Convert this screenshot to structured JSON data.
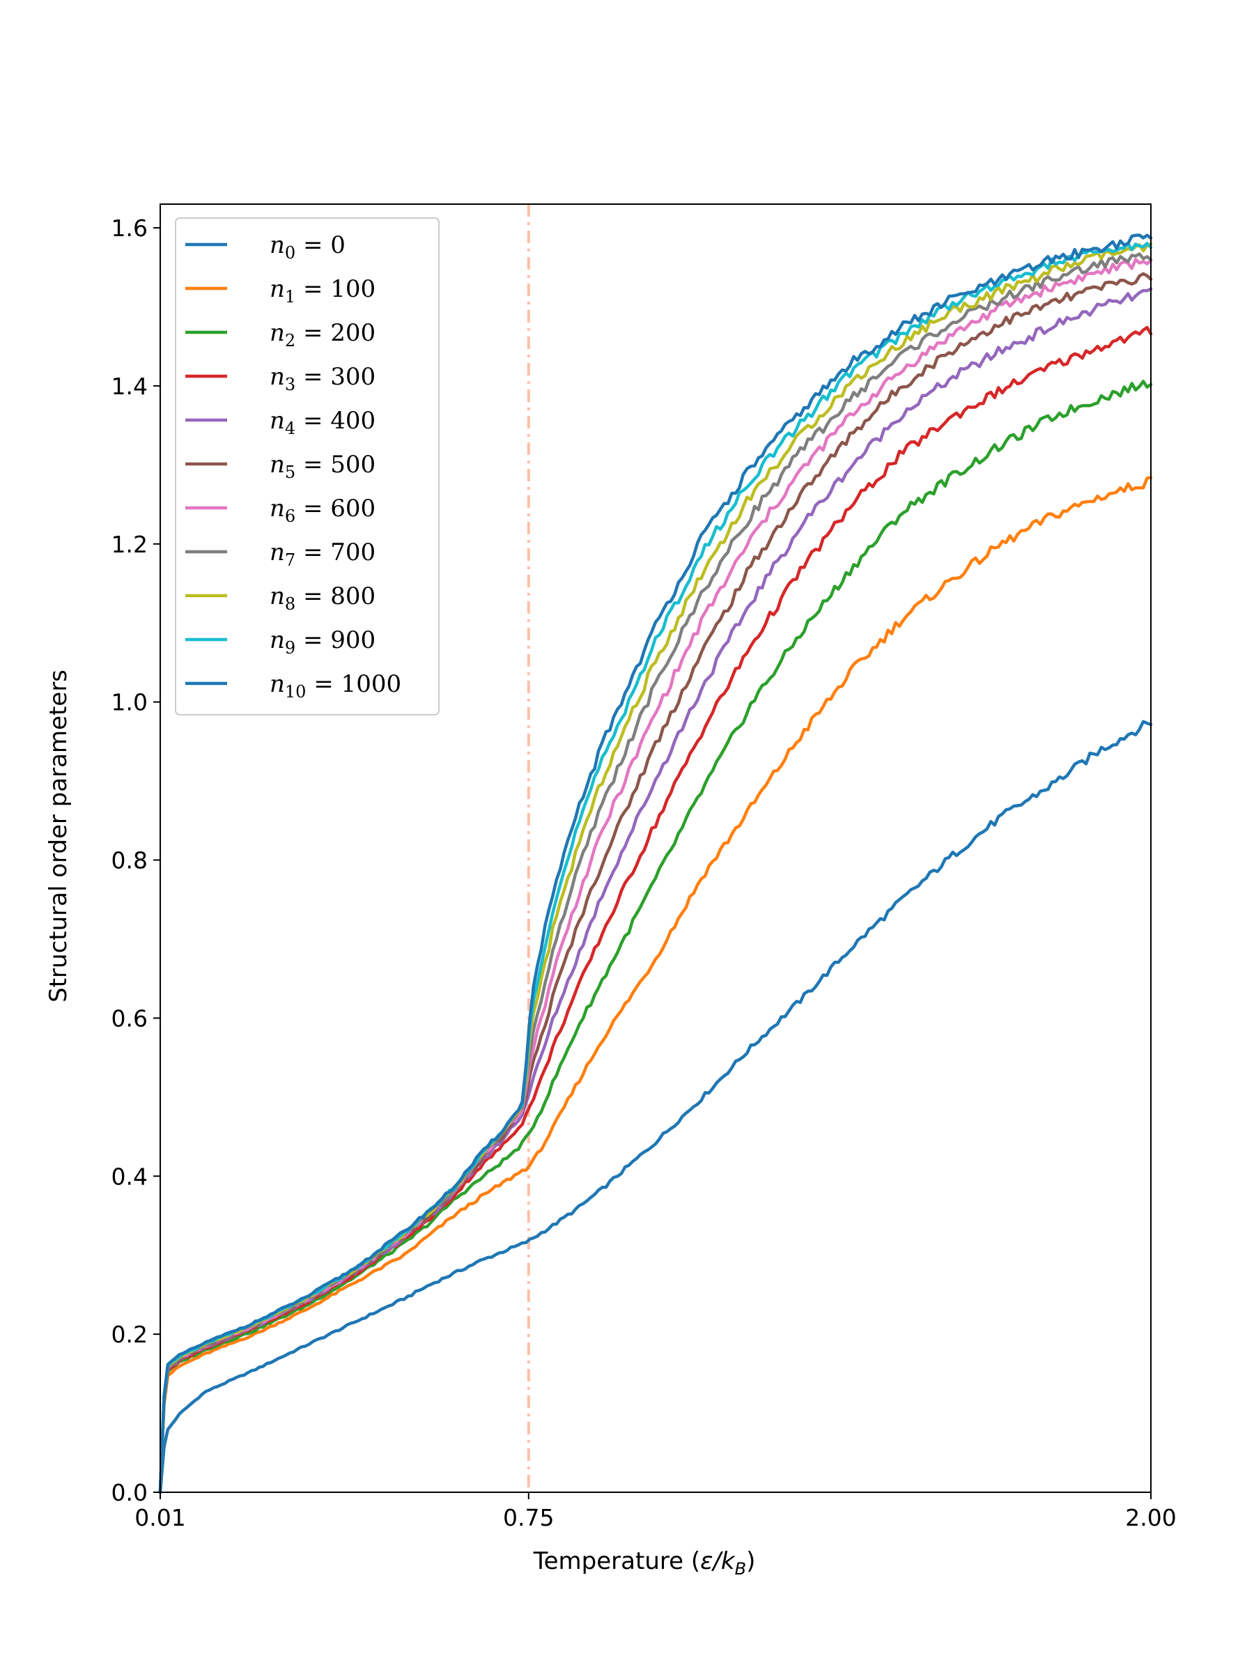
{
  "chart_data": {
    "type": "line",
    "title": "",
    "xlabel": "Temperature (ε/k_B)",
    "ylabel": "Structural order parameters",
    "xlim": [
      0.01,
      2.0
    ],
    "ylim": [
      0.0,
      1.63
    ],
    "x_ticks": [
      "0.01",
      "0.75",
      "2.00"
    ],
    "y_ticks": [
      "0.0",
      "0.2",
      "0.4",
      "0.6",
      "0.8",
      "1.0",
      "1.2",
      "1.4",
      "1.6"
    ],
    "grid": false,
    "legend_position": "top-left",
    "vline": {
      "x": 0.75,
      "color": "#ffbfa6",
      "style": "dash-dot"
    },
    "x_points": [
      0.01,
      0.02,
      0.05,
      0.1,
      0.2,
      0.3,
      0.4,
      0.5,
      0.55,
      0.6,
      0.65,
      0.7,
      0.72,
      0.74,
      0.75,
      0.76,
      0.78,
      0.8,
      0.85,
      0.9,
      1.0,
      1.1,
      1.2,
      1.3,
      1.4,
      1.5,
      1.6,
      1.7,
      1.8,
      1.9,
      2.0
    ],
    "series": [
      {
        "name_sub": "0",
        "name_val": "0",
        "color": "#1f77b4",
        "values": [
          0.0,
          0.075,
          0.1,
          0.127,
          0.155,
          0.185,
          0.215,
          0.245,
          0.262,
          0.277,
          0.292,
          0.305,
          0.31,
          0.315,
          0.318,
          0.322,
          0.33,
          0.338,
          0.36,
          0.385,
          0.44,
          0.5,
          0.565,
          0.625,
          0.69,
          0.75,
          0.805,
          0.855,
          0.895,
          0.94,
          0.975
        ]
      },
      {
        "name_sub": "1",
        "name_val": "100",
        "color": "#ff7f0e",
        "values": [
          0.0,
          0.145,
          0.16,
          0.175,
          0.2,
          0.23,
          0.265,
          0.3,
          0.325,
          0.35,
          0.372,
          0.392,
          0.4,
          0.408,
          0.412,
          0.42,
          0.44,
          0.462,
          0.52,
          0.575,
          0.67,
          0.78,
          0.87,
          0.96,
          1.04,
          1.105,
          1.155,
          1.2,
          1.235,
          1.26,
          1.28
        ]
      },
      {
        "name_sub": "2",
        "name_val": "200",
        "color": "#2ca02c",
        "values": [
          0.0,
          0.15,
          0.165,
          0.18,
          0.205,
          0.235,
          0.272,
          0.315,
          0.34,
          0.37,
          0.395,
          0.42,
          0.43,
          0.443,
          0.452,
          0.465,
          0.49,
          0.52,
          0.59,
          0.65,
          0.77,
          0.89,
          1.0,
          1.09,
          1.17,
          1.24,
          1.285,
          1.325,
          1.36,
          1.385,
          1.405
        ]
      },
      {
        "name_sub": "3",
        "name_val": "300",
        "color": "#d62728",
        "values": [
          0.0,
          0.152,
          0.167,
          0.182,
          0.208,
          0.238,
          0.275,
          0.32,
          0.345,
          0.375,
          0.41,
          0.44,
          0.455,
          0.47,
          0.485,
          0.5,
          0.53,
          0.565,
          0.64,
          0.71,
          0.84,
          0.965,
          1.075,
          1.17,
          1.25,
          1.315,
          1.36,
          1.395,
          1.425,
          1.45,
          1.47
        ]
      },
      {
        "name_sub": "4",
        "name_val": "400",
        "color": "#9467bd",
        "values": [
          0.0,
          0.153,
          0.168,
          0.183,
          0.209,
          0.24,
          0.277,
          0.322,
          0.348,
          0.378,
          0.415,
          0.448,
          0.465,
          0.48,
          0.505,
          0.525,
          0.56,
          0.6,
          0.68,
          0.76,
          0.895,
          1.02,
          1.13,
          1.225,
          1.3,
          1.365,
          1.41,
          1.445,
          1.475,
          1.5,
          1.52
        ]
      },
      {
        "name_sub": "5",
        "name_val": "500",
        "color": "#8c564b",
        "values": [
          0.0,
          0.154,
          0.169,
          0.184,
          0.21,
          0.241,
          0.278,
          0.324,
          0.35,
          0.38,
          0.418,
          0.452,
          0.468,
          0.485,
          0.52,
          0.545,
          0.585,
          0.63,
          0.72,
          0.8,
          0.94,
          1.065,
          1.175,
          1.265,
          1.34,
          1.4,
          1.445,
          1.48,
          1.505,
          1.525,
          1.54
        ]
      },
      {
        "name_sub": "6",
        "name_val": "600",
        "color": "#e377c2",
        "values": [
          0.0,
          0.155,
          0.17,
          0.185,
          0.211,
          0.242,
          0.279,
          0.325,
          0.352,
          0.382,
          0.42,
          0.455,
          0.47,
          0.488,
          0.535,
          0.565,
          0.61,
          0.66,
          0.755,
          0.84,
          0.98,
          1.105,
          1.21,
          1.295,
          1.365,
          1.42,
          1.465,
          1.5,
          1.525,
          1.545,
          1.56
        ]
      },
      {
        "name_sub": "7",
        "name_val": "700",
        "color": "#7f7f7f",
        "values": [
          0.0,
          0.156,
          0.171,
          0.186,
          0.212,
          0.243,
          0.28,
          0.326,
          0.353,
          0.383,
          0.422,
          0.457,
          0.472,
          0.49,
          0.55,
          0.585,
          0.635,
          0.69,
          0.79,
          0.875,
          1.015,
          1.14,
          1.24,
          1.32,
          1.385,
          1.44,
          1.48,
          1.51,
          1.535,
          1.555,
          1.565
        ]
      },
      {
        "name_sub": "8",
        "name_val": "800",
        "color": "#bcbd22",
        "values": [
          0.0,
          0.157,
          0.172,
          0.187,
          0.213,
          0.244,
          0.281,
          0.327,
          0.354,
          0.384,
          0.423,
          0.458,
          0.474,
          0.492,
          0.565,
          0.605,
          0.66,
          0.715,
          0.82,
          0.905,
          1.045,
          1.165,
          1.265,
          1.34,
          1.405,
          1.455,
          1.495,
          1.52,
          1.545,
          1.565,
          1.575
        ]
      },
      {
        "name_sub": "9",
        "name_val": "900",
        "color": "#17becf",
        "values": [
          0.0,
          0.158,
          0.173,
          0.188,
          0.214,
          0.245,
          0.282,
          0.328,
          0.355,
          0.385,
          0.424,
          0.459,
          0.475,
          0.493,
          0.58,
          0.625,
          0.685,
          0.74,
          0.845,
          0.93,
          1.07,
          1.19,
          1.285,
          1.355,
          1.42,
          1.465,
          1.505,
          1.53,
          1.555,
          1.57,
          1.58
        ]
      },
      {
        "name_sub": "10",
        "name_val": "1000",
        "color": "#1f77b4",
        "values": [
          0.0,
          0.159,
          0.174,
          0.189,
          0.215,
          0.246,
          0.283,
          0.33,
          0.356,
          0.386,
          0.425,
          0.46,
          0.476,
          0.495,
          0.59,
          0.64,
          0.705,
          0.76,
          0.865,
          0.95,
          1.09,
          1.21,
          1.3,
          1.37,
          1.43,
          1.475,
          1.51,
          1.535,
          1.56,
          1.575,
          1.59
        ]
      }
    ]
  }
}
